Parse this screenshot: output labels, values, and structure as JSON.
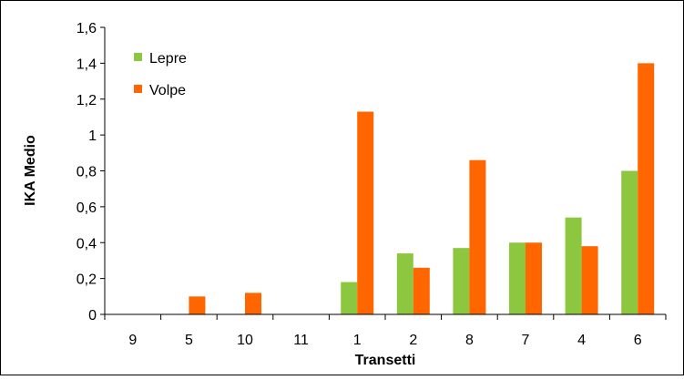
{
  "colors": {
    "lepre": "#8dc63f",
    "volpe": "#ff6600",
    "border": "#000000",
    "background": "#ffffff"
  },
  "chart_data": {
    "type": "bar",
    "categories": [
      "9",
      "5",
      "10",
      "11",
      "1",
      "2",
      "8",
      "7",
      "4",
      "6"
    ],
    "series": [
      {
        "name": "Lepre",
        "values": [
          0,
          0,
          0,
          0,
          0.18,
          0.34,
          0.37,
          0.4,
          0.54,
          0.8
        ]
      },
      {
        "name": "Volpe",
        "values": [
          0,
          0.1,
          0.12,
          0,
          1.13,
          0.26,
          0.86,
          0.4,
          0.38,
          1.4
        ]
      }
    ],
    "xlabel": "Transetti",
    "ylabel": "IKA Medio",
    "ylim": [
      0,
      1.6
    ],
    "yticks": [
      "0",
      "0,2",
      "0,4",
      "0,6",
      "0,8",
      "1",
      "1,2",
      "1,4",
      "1,6"
    ],
    "grid": false,
    "legend_position": "top-left"
  }
}
